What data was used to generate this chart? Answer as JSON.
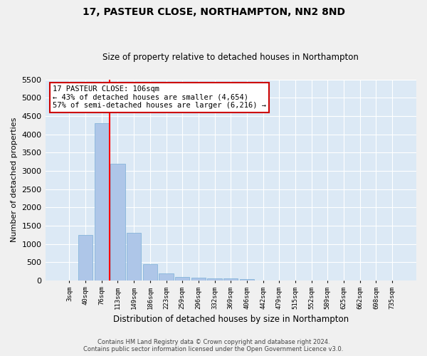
{
  "title": "17, PASTEUR CLOSE, NORTHAMPTON, NN2 8ND",
  "subtitle": "Size of property relative to detached houses in Northampton",
  "xlabel": "Distribution of detached houses by size in Northampton",
  "ylabel": "Number of detached properties",
  "categories": [
    "3sqm",
    "40sqm",
    "76sqm",
    "113sqm",
    "149sqm",
    "186sqm",
    "223sqm",
    "259sqm",
    "296sqm",
    "332sqm",
    "369sqm",
    "406sqm",
    "442sqm",
    "479sqm",
    "515sqm",
    "552sqm",
    "589sqm",
    "625sqm",
    "662sqm",
    "698sqm",
    "735sqm"
  ],
  "values": [
    0,
    1250,
    4300,
    3200,
    1300,
    450,
    200,
    100,
    80,
    60,
    50,
    40,
    0,
    0,
    0,
    0,
    0,
    0,
    0,
    0,
    0
  ],
  "bar_color": "#aec6e8",
  "bar_edge_color": "#7aaed6",
  "background_color": "#dce9f5",
  "grid_color": "#ffffff",
  "redline_x": 2.5,
  "annotation_line1": "17 PASTEUR CLOSE: 106sqm",
  "annotation_line2": "← 43% of detached houses are smaller (4,654)",
  "annotation_line3": "57% of semi-detached houses are larger (6,216) →",
  "annotation_box_color": "#ffffff",
  "annotation_box_edge": "#cc0000",
  "footer_line1": "Contains HM Land Registry data © Crown copyright and database right 2024.",
  "footer_line2": "Contains public sector information licensed under the Open Government Licence v3.0.",
  "ylim": [
    0,
    5500
  ],
  "yticks": [
    0,
    500,
    1000,
    1500,
    2000,
    2500,
    3000,
    3500,
    4000,
    4500,
    5000,
    5500
  ]
}
